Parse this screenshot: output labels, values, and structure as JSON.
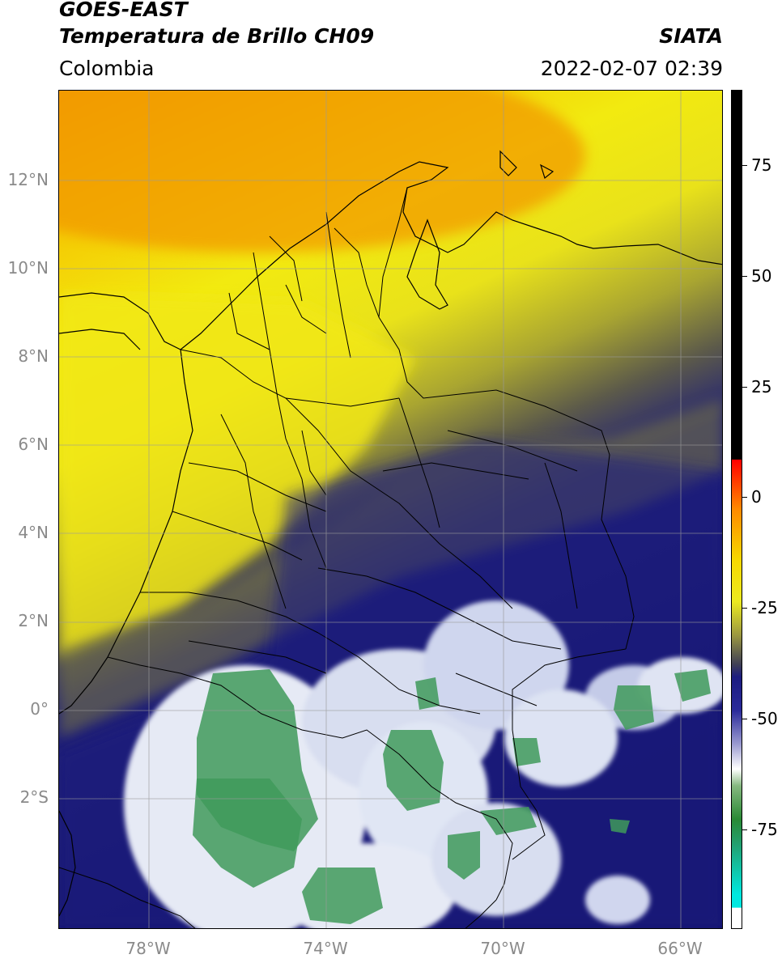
{
  "header": {
    "title_line1": "GOES-EAST",
    "title_line2": "Temperatura de Brillo CH09",
    "source": "SIATA",
    "region": "Colombia",
    "datetime": "2022-02-07 02:39"
  },
  "map": {
    "lat_labels": [
      "12°N",
      "10°N",
      "8°N",
      "6°N",
      "4°N",
      "2°N",
      "0°",
      "2°S"
    ],
    "lon_labels": [
      "78°W",
      "74°W",
      "70°W",
      "66°W"
    ],
    "colors": {
      "orange": "#f5a000",
      "yellow": "#f2ea10",
      "olive": "#8c8a3a",
      "dark_blue": "#1a1a80",
      "white_cloud": "#e8ecf6",
      "green": "#3f9a5a",
      "gridline": "#999999",
      "border_line": "#000000"
    }
  },
  "colorbar": {
    "labels": [
      "75",
      "50",
      "25",
      "0",
      "-25",
      "-50",
      "-75"
    ],
    "colors": [
      "#000000",
      "#ff0000",
      "#ff8800",
      "#f2ea10",
      "#5a5a3a",
      "#1a1a80",
      "#ffffff",
      "#2f8a3a",
      "#00d0c8",
      "#ffffff"
    ]
  }
}
